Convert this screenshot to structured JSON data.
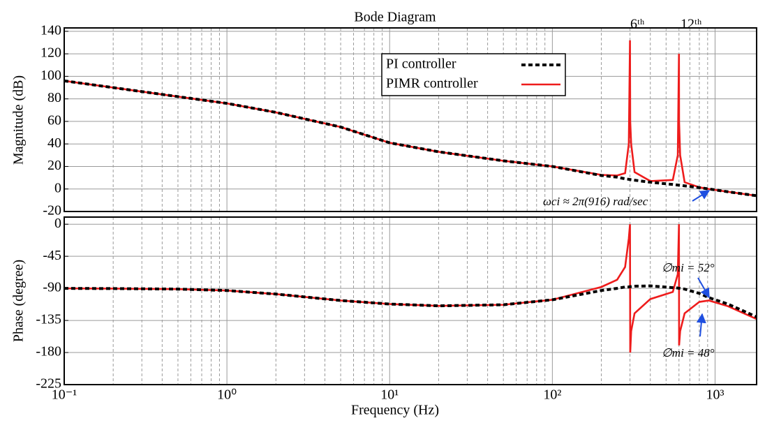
{
  "chart_data": [
    {
      "type": "line",
      "title": "Bode Diagram",
      "ylabel": "Magnitude (dB)",
      "x": [
        0.1,
        0.2,
        0.5,
        1,
        2,
        5,
        10,
        20,
        50,
        100,
        200,
        250,
        280,
        295,
        300,
        301,
        305,
        320,
        400,
        550,
        590,
        600,
        601,
        610,
        650,
        800,
        916,
        1200,
        1800
      ],
      "xlim": [
        0.1,
        1800
      ],
      "xscale": "log",
      "ylim": [
        -20,
        143
      ],
      "yticks": [
        -20,
        0,
        20,
        40,
        60,
        80,
        100,
        120,
        140
      ],
      "grid": true,
      "minor_grid": true,
      "legend": "upper center",
      "series": [
        {
          "name": "PI controller",
          "color": "#000000",
          "style": "dashed",
          "values": [
            96,
            90,
            82,
            76,
            68,
            55,
            41,
            33,
            25,
            20,
            12,
            10.5,
            9,
            8.6,
            8.4,
            8.4,
            8.2,
            7.8,
            6,
            4,
            3.5,
            3.4,
            3.4,
            3.3,
            2.8,
            1.2,
            0,
            -2.5,
            -6
          ]
        },
        {
          "name": "PIMR controller",
          "color": "#ee1c1c",
          "style": "solid",
          "values": [
            96,
            90,
            82,
            76,
            68,
            55,
            41,
            33,
            25,
            20,
            12.5,
            12,
            14,
            40,
            132,
            60,
            40,
            15,
            7,
            8,
            30,
            120,
            60,
            30,
            6,
            1.5,
            0,
            -2.5,
            -6
          ]
        }
      ],
      "annotations": [
        "6ᵗʰ",
        "12ᵗʰ",
        "ωci ≈ 2π(916) rad/sec"
      ]
    },
    {
      "type": "line",
      "ylabel": "Phase (degree)",
      "xlabel": "Frequency  (Hz)",
      "x": [
        0.1,
        0.2,
        0.5,
        1,
        2,
        5,
        10,
        20,
        50,
        100,
        200,
        250,
        280,
        295,
        300,
        301,
        305,
        320,
        400,
        550,
        590,
        600,
        601,
        610,
        650,
        800,
        916,
        1200,
        1800
      ],
      "xlim": [
        0.1,
        1800
      ],
      "xscale": "log",
      "xticks": [
        {
          "value": 0.1,
          "label": "10⁻¹"
        },
        {
          "value": 1,
          "label": "10⁰"
        },
        {
          "value": 10,
          "label": "10¹"
        },
        {
          "value": 100,
          "label": "10²"
        },
        {
          "value": 1000,
          "label": "10³"
        }
      ],
      "ylim": [
        -225,
        10
      ],
      "yticks": [
        -225,
        -180,
        -135,
        -90,
        -45,
        0
      ],
      "grid": true,
      "minor_grid": true,
      "series": [
        {
          "name": "PI controller",
          "color": "#000000",
          "style": "dashed",
          "values": [
            -90,
            -90.3,
            -91,
            -93,
            -98,
            -107,
            -112,
            -114.5,
            -113,
            -106,
            -93,
            -90,
            -88,
            -88,
            -87.5,
            -87.5,
            -87.5,
            -87,
            -86.5,
            -89,
            -89.5,
            -90,
            -90,
            -90,
            -91,
            -97,
            -103,
            -112,
            -130
          ]
        },
        {
          "name": "PIMR controller",
          "color": "#ee1c1c",
          "style": "solid",
          "values": [
            -90,
            -90.3,
            -91,
            -93,
            -98,
            -107,
            -112,
            -114.5,
            -113,
            -106,
            -88,
            -78,
            -60,
            -20,
            0,
            -180,
            -150,
            -125,
            -105,
            -95,
            -70,
            0,
            -170,
            -150,
            -125,
            -109,
            -107,
            -115,
            -133
          ]
        }
      ],
      "annotations": [
        "∅mi = 52°",
        "∅mi = 48°"
      ]
    }
  ]
}
